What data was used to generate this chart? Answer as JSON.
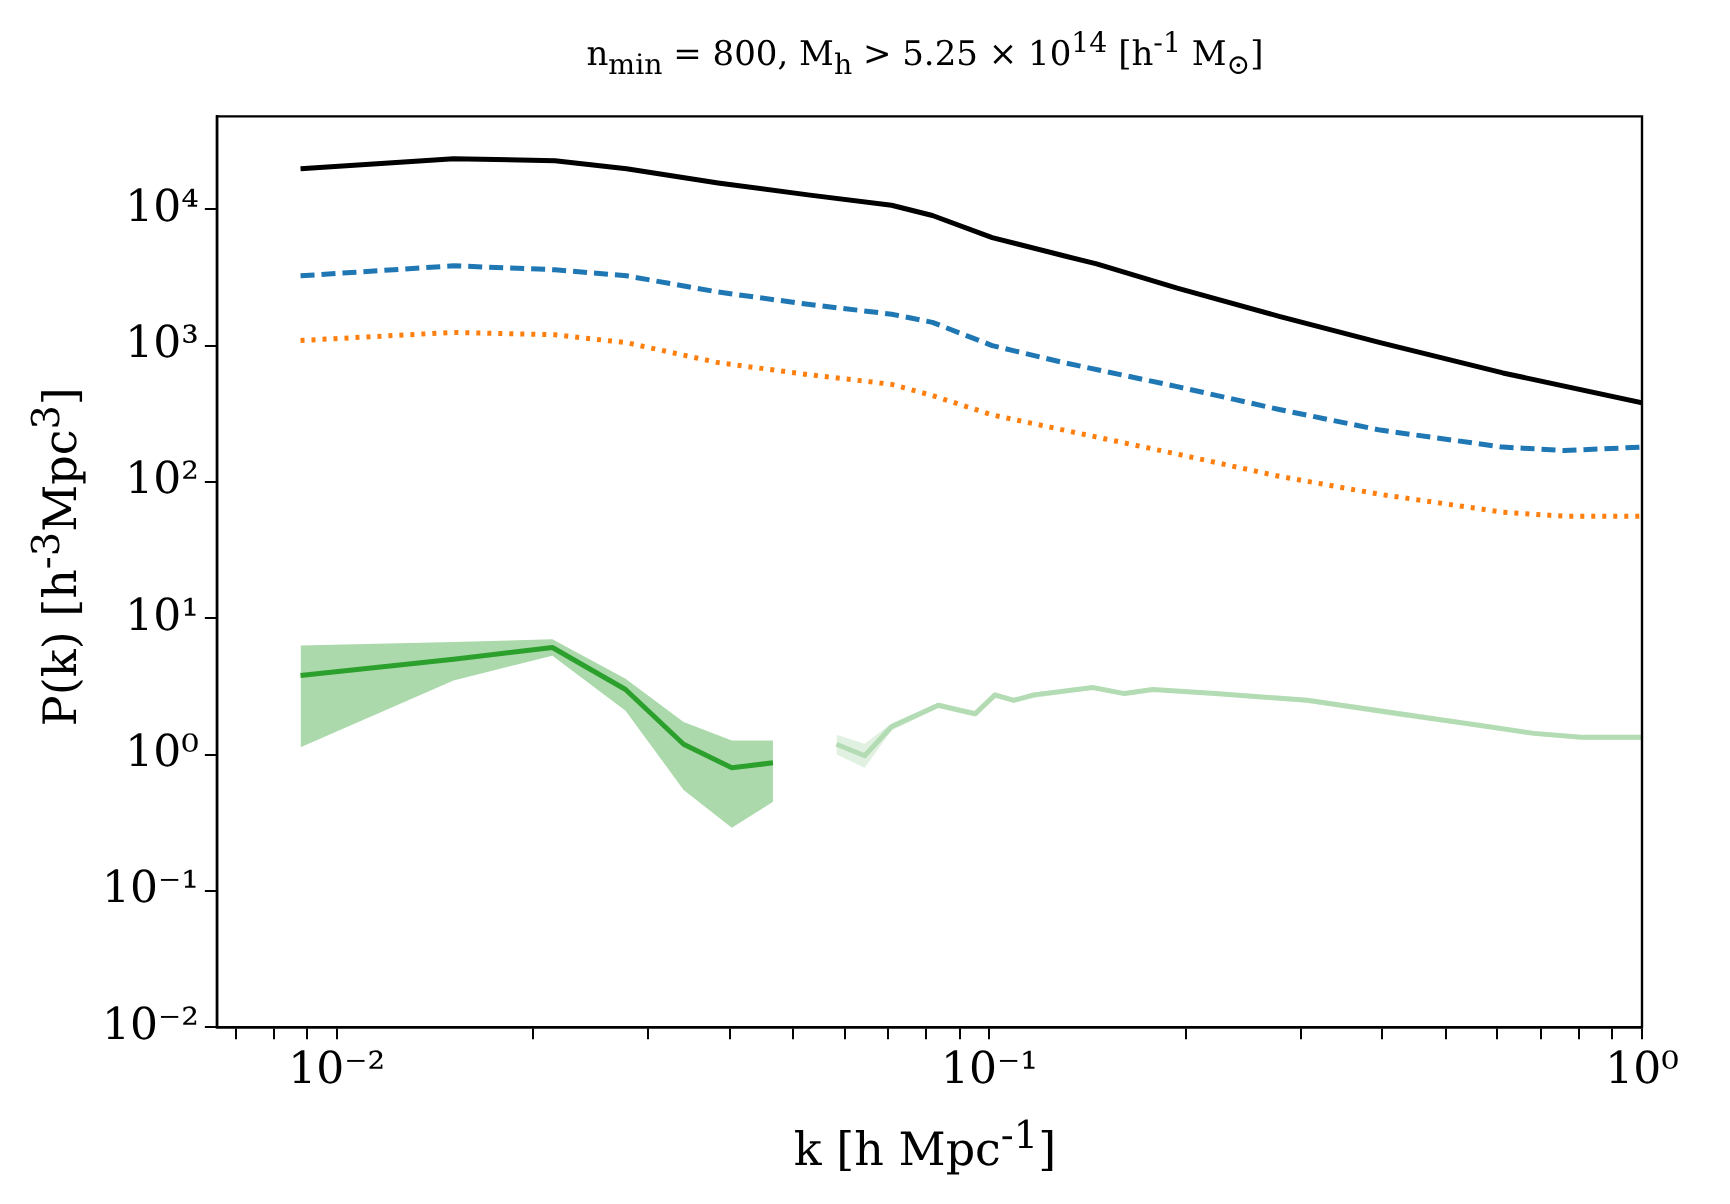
{
  "chart_data": {
    "type": "line",
    "title": "n$_{min}$ = 800, M$_{h}$ > 5.25 × 10$^{14}$ [h$^{-1}$ M$_{⊙}$]",
    "xlabel": "k [h Mpc$^{-1}$]",
    "ylabel": "P(k) [h$^{-3}$Mpc$^{3}$]",
    "log": "xy",
    "grid": false,
    "legend": false,
    "marker": "none",
    "xlim": [
      0.00655,
      1
    ],
    "ylim": [
      0.01,
      48000
    ],
    "xticks": [
      {
        "value": 0.007,
        "label": null
      },
      {
        "value": 0.008,
        "label": null
      },
      {
        "value": 0.009,
        "label": null
      },
      {
        "value": 0.01,
        "label": "10⁻²"
      },
      {
        "value": 0.02,
        "label": null
      },
      {
        "value": 0.03,
        "label": null
      },
      {
        "value": 0.04,
        "label": null
      },
      {
        "value": 0.05,
        "label": null
      },
      {
        "value": 0.06,
        "label": null
      },
      {
        "value": 0.07,
        "label": null
      },
      {
        "value": 0.08,
        "label": null
      },
      {
        "value": 0.09,
        "label": null
      },
      {
        "value": 0.1,
        "label": "10⁻¹"
      },
      {
        "value": 0.2,
        "label": null
      },
      {
        "value": 0.3,
        "label": null
      },
      {
        "value": 0.4,
        "label": null
      },
      {
        "value": 0.5,
        "label": null
      },
      {
        "value": 0.6,
        "label": null
      },
      {
        "value": 0.7,
        "label": null
      },
      {
        "value": 0.8,
        "label": null
      },
      {
        "value": 0.9,
        "label": null
      },
      {
        "value": 1,
        "label": "10⁰"
      }
    ],
    "yticks": [
      {
        "value": 0.01,
        "label": "10⁻²"
      },
      {
        "value": 0.1,
        "label": "10⁻¹"
      },
      {
        "value": 1,
        "label": "10⁰"
      },
      {
        "value": 10,
        "label": "10¹"
      },
      {
        "value": 100,
        "label": "10²"
      },
      {
        "value": 1000,
        "label": "10³"
      },
      {
        "value": 10000,
        "label": "10⁴"
      }
    ],
    "series": [
      {
        "color": "#000000",
        "line_style": "solid",
        "x": [
          0.0088,
          0.0151,
          0.0216,
          0.0278,
          0.0384,
          0.0531,
          0.0708,
          0.0818,
          0.101,
          0.13,
          0.146,
          0.194,
          0.278,
          0.397,
          0.612,
          1.0
        ],
        "values": [
          19800,
          23500,
          22700,
          19800,
          15600,
          12700,
          10700,
          9000,
          6200,
          4560,
          3980,
          2640,
          1640,
          1050,
          630,
          380
        ]
      },
      {
        "color": "#1f77b4",
        "line_style": "dashed",
        "x": [
          0.0088,
          0.0151,
          0.0216,
          0.0278,
          0.0384,
          0.0531,
          0.0708,
          0.0818,
          0.101,
          0.13,
          0.194,
          0.278,
          0.397,
          0.612,
          0.76,
          1.0
        ],
        "values": [
          3250,
          3850,
          3600,
          3250,
          2470,
          2000,
          1700,
          1480,
          1000,
          750,
          500,
          340,
          240,
          180,
          170,
          180
        ]
      },
      {
        "color": "#ff7f0e",
        "line_style": "dotted",
        "x": [
          0.0088,
          0.0151,
          0.0216,
          0.0278,
          0.0384,
          0.0531,
          0.0708,
          0.0818,
          0.101,
          0.13,
          0.194,
          0.278,
          0.397,
          0.612,
          0.76,
          1.0
        ],
        "values": [
          1090,
          1250,
          1200,
          1050,
          750,
          610,
          520,
          430,
          310,
          240,
          160,
          110,
          81,
          60,
          56,
          56
        ]
      },
      {
        "color": "#2ca02c",
        "line_style": "solid",
        "x": [
          0.0088,
          0.0151,
          0.0214,
          0.0277,
          0.034,
          0.0403,
          0.0466
        ],
        "values": [
          3.8,
          5.0,
          6.1,
          3.0,
          1.19,
          0.8,
          0.87
        ],
        "lower": [
          1.13,
          3.5,
          5.3,
          2.1,
          0.55,
          0.29,
          0.45
        ],
        "upper": [
          6.3,
          6.7,
          7.0,
          3.6,
          1.73,
          1.27,
          1.27
        ]
      },
      {
        "color": "#b4ddb4",
        "line_style": "solid",
        "x": [
          0.0583,
          0.0644,
          0.0708,
          0.0835,
          0.0951,
          0.102,
          0.109,
          0.117,
          0.144,
          0.161,
          0.178,
          0.222,
          0.307,
          0.422,
          0.583,
          0.683,
          0.806,
          1.0
        ],
        "values": [
          1.19,
          0.98,
          1.6,
          2.3,
          1.99,
          2.74,
          2.5,
          2.74,
          3.1,
          2.8,
          3.0,
          2.8,
          2.5,
          2.0,
          1.6,
          1.43,
          1.34,
          1.34
        ],
        "lower": [
          1.0,
          0.8,
          1.5,
          2.2,
          1.9,
          2.6,
          2.4,
          2.6,
          3.0,
          2.7,
          2.9,
          2.7,
          2.4,
          1.9,
          1.55,
          1.38,
          1.29,
          1.29
        ],
        "upper": [
          1.4,
          1.2,
          1.7,
          2.4,
          2.1,
          2.85,
          2.6,
          2.85,
          3.2,
          2.9,
          3.1,
          2.9,
          2.6,
          2.1,
          1.65,
          1.48,
          1.39,
          1.39
        ]
      }
    ]
  }
}
